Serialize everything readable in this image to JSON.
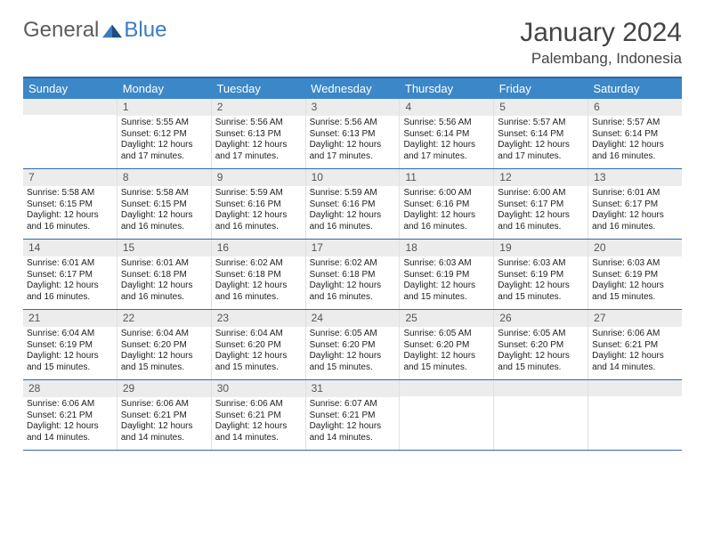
{
  "logo": {
    "textA": "General",
    "textB": "Blue"
  },
  "title": "January 2024",
  "location": "Palembang, Indonesia",
  "colors": {
    "header_bg": "#3b87c8",
    "border": "#2f6aa7",
    "daynum_bg": "#ececec",
    "text": "#333333",
    "logo_gray": "#5c5c5c",
    "logo_blue": "#3a7cbf"
  },
  "typography": {
    "title_fontsize": 30,
    "location_fontsize": 17,
    "weekday_fontsize": 13,
    "daynum_fontsize": 12,
    "body_fontsize": 10
  },
  "weekdays": [
    "Sunday",
    "Monday",
    "Tuesday",
    "Wednesday",
    "Thursday",
    "Friday",
    "Saturday"
  ],
  "weeks": [
    [
      {
        "n": "",
        "sr": "",
        "ss": "",
        "dl": ""
      },
      {
        "n": "1",
        "sr": "Sunrise: 5:55 AM",
        "ss": "Sunset: 6:12 PM",
        "dl": "Daylight: 12 hours and 17 minutes."
      },
      {
        "n": "2",
        "sr": "Sunrise: 5:56 AM",
        "ss": "Sunset: 6:13 PM",
        "dl": "Daylight: 12 hours and 17 minutes."
      },
      {
        "n": "3",
        "sr": "Sunrise: 5:56 AM",
        "ss": "Sunset: 6:13 PM",
        "dl": "Daylight: 12 hours and 17 minutes."
      },
      {
        "n": "4",
        "sr": "Sunrise: 5:56 AM",
        "ss": "Sunset: 6:14 PM",
        "dl": "Daylight: 12 hours and 17 minutes."
      },
      {
        "n": "5",
        "sr": "Sunrise: 5:57 AM",
        "ss": "Sunset: 6:14 PM",
        "dl": "Daylight: 12 hours and 17 minutes."
      },
      {
        "n": "6",
        "sr": "Sunrise: 5:57 AM",
        "ss": "Sunset: 6:14 PM",
        "dl": "Daylight: 12 hours and 16 minutes."
      }
    ],
    [
      {
        "n": "7",
        "sr": "Sunrise: 5:58 AM",
        "ss": "Sunset: 6:15 PM",
        "dl": "Daylight: 12 hours and 16 minutes."
      },
      {
        "n": "8",
        "sr": "Sunrise: 5:58 AM",
        "ss": "Sunset: 6:15 PM",
        "dl": "Daylight: 12 hours and 16 minutes."
      },
      {
        "n": "9",
        "sr": "Sunrise: 5:59 AM",
        "ss": "Sunset: 6:16 PM",
        "dl": "Daylight: 12 hours and 16 minutes."
      },
      {
        "n": "10",
        "sr": "Sunrise: 5:59 AM",
        "ss": "Sunset: 6:16 PM",
        "dl": "Daylight: 12 hours and 16 minutes."
      },
      {
        "n": "11",
        "sr": "Sunrise: 6:00 AM",
        "ss": "Sunset: 6:16 PM",
        "dl": "Daylight: 12 hours and 16 minutes."
      },
      {
        "n": "12",
        "sr": "Sunrise: 6:00 AM",
        "ss": "Sunset: 6:17 PM",
        "dl": "Daylight: 12 hours and 16 minutes."
      },
      {
        "n": "13",
        "sr": "Sunrise: 6:01 AM",
        "ss": "Sunset: 6:17 PM",
        "dl": "Daylight: 12 hours and 16 minutes."
      }
    ],
    [
      {
        "n": "14",
        "sr": "Sunrise: 6:01 AM",
        "ss": "Sunset: 6:17 PM",
        "dl": "Daylight: 12 hours and 16 minutes."
      },
      {
        "n": "15",
        "sr": "Sunrise: 6:01 AM",
        "ss": "Sunset: 6:18 PM",
        "dl": "Daylight: 12 hours and 16 minutes."
      },
      {
        "n": "16",
        "sr": "Sunrise: 6:02 AM",
        "ss": "Sunset: 6:18 PM",
        "dl": "Daylight: 12 hours and 16 minutes."
      },
      {
        "n": "17",
        "sr": "Sunrise: 6:02 AM",
        "ss": "Sunset: 6:18 PM",
        "dl": "Daylight: 12 hours and 16 minutes."
      },
      {
        "n": "18",
        "sr": "Sunrise: 6:03 AM",
        "ss": "Sunset: 6:19 PM",
        "dl": "Daylight: 12 hours and 15 minutes."
      },
      {
        "n": "19",
        "sr": "Sunrise: 6:03 AM",
        "ss": "Sunset: 6:19 PM",
        "dl": "Daylight: 12 hours and 15 minutes."
      },
      {
        "n": "20",
        "sr": "Sunrise: 6:03 AM",
        "ss": "Sunset: 6:19 PM",
        "dl": "Daylight: 12 hours and 15 minutes."
      }
    ],
    [
      {
        "n": "21",
        "sr": "Sunrise: 6:04 AM",
        "ss": "Sunset: 6:19 PM",
        "dl": "Daylight: 12 hours and 15 minutes."
      },
      {
        "n": "22",
        "sr": "Sunrise: 6:04 AM",
        "ss": "Sunset: 6:20 PM",
        "dl": "Daylight: 12 hours and 15 minutes."
      },
      {
        "n": "23",
        "sr": "Sunrise: 6:04 AM",
        "ss": "Sunset: 6:20 PM",
        "dl": "Daylight: 12 hours and 15 minutes."
      },
      {
        "n": "24",
        "sr": "Sunrise: 6:05 AM",
        "ss": "Sunset: 6:20 PM",
        "dl": "Daylight: 12 hours and 15 minutes."
      },
      {
        "n": "25",
        "sr": "Sunrise: 6:05 AM",
        "ss": "Sunset: 6:20 PM",
        "dl": "Daylight: 12 hours and 15 minutes."
      },
      {
        "n": "26",
        "sr": "Sunrise: 6:05 AM",
        "ss": "Sunset: 6:20 PM",
        "dl": "Daylight: 12 hours and 15 minutes."
      },
      {
        "n": "27",
        "sr": "Sunrise: 6:06 AM",
        "ss": "Sunset: 6:21 PM",
        "dl": "Daylight: 12 hours and 14 minutes."
      }
    ],
    [
      {
        "n": "28",
        "sr": "Sunrise: 6:06 AM",
        "ss": "Sunset: 6:21 PM",
        "dl": "Daylight: 12 hours and 14 minutes."
      },
      {
        "n": "29",
        "sr": "Sunrise: 6:06 AM",
        "ss": "Sunset: 6:21 PM",
        "dl": "Daylight: 12 hours and 14 minutes."
      },
      {
        "n": "30",
        "sr": "Sunrise: 6:06 AM",
        "ss": "Sunset: 6:21 PM",
        "dl": "Daylight: 12 hours and 14 minutes."
      },
      {
        "n": "31",
        "sr": "Sunrise: 6:07 AM",
        "ss": "Sunset: 6:21 PM",
        "dl": "Daylight: 12 hours and 14 minutes."
      },
      {
        "n": "",
        "sr": "",
        "ss": "",
        "dl": ""
      },
      {
        "n": "",
        "sr": "",
        "ss": "",
        "dl": ""
      },
      {
        "n": "",
        "sr": "",
        "ss": "",
        "dl": ""
      }
    ]
  ]
}
